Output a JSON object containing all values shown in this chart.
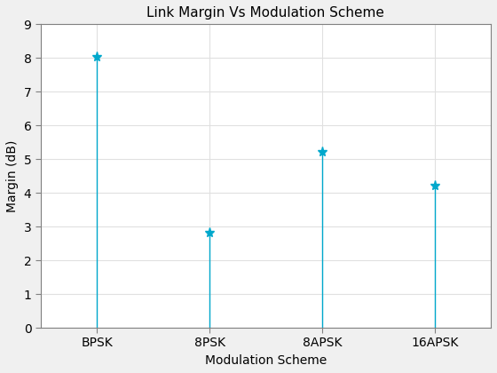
{
  "title": "Link Margin Vs Modulation Scheme",
  "xlabel": "Modulation Scheme",
  "ylabel": "Margin (dB)",
  "categories": [
    "BPSK",
    "8PSK",
    "8APSK",
    "16APSK"
  ],
  "x_positions": [
    1,
    2,
    3,
    4
  ],
  "values": [
    8.02,
    2.82,
    5.22,
    4.22
  ],
  "ylim": [
    0,
    9
  ],
  "yticks": [
    0,
    1,
    2,
    3,
    4,
    5,
    6,
    7,
    8,
    9
  ],
  "stem_color": "#00A8CC",
  "markersize": 8,
  "linewidth": 1.0,
  "title_fontsize": 11,
  "label_fontsize": 10,
  "tick_fontsize": 10,
  "figsize": [
    5.6,
    4.2
  ],
  "dpi": 100,
  "bg_color": "#F0F0F0",
  "axes_bg": "#FFFFFF",
  "grid_color": "#E0E0E0"
}
